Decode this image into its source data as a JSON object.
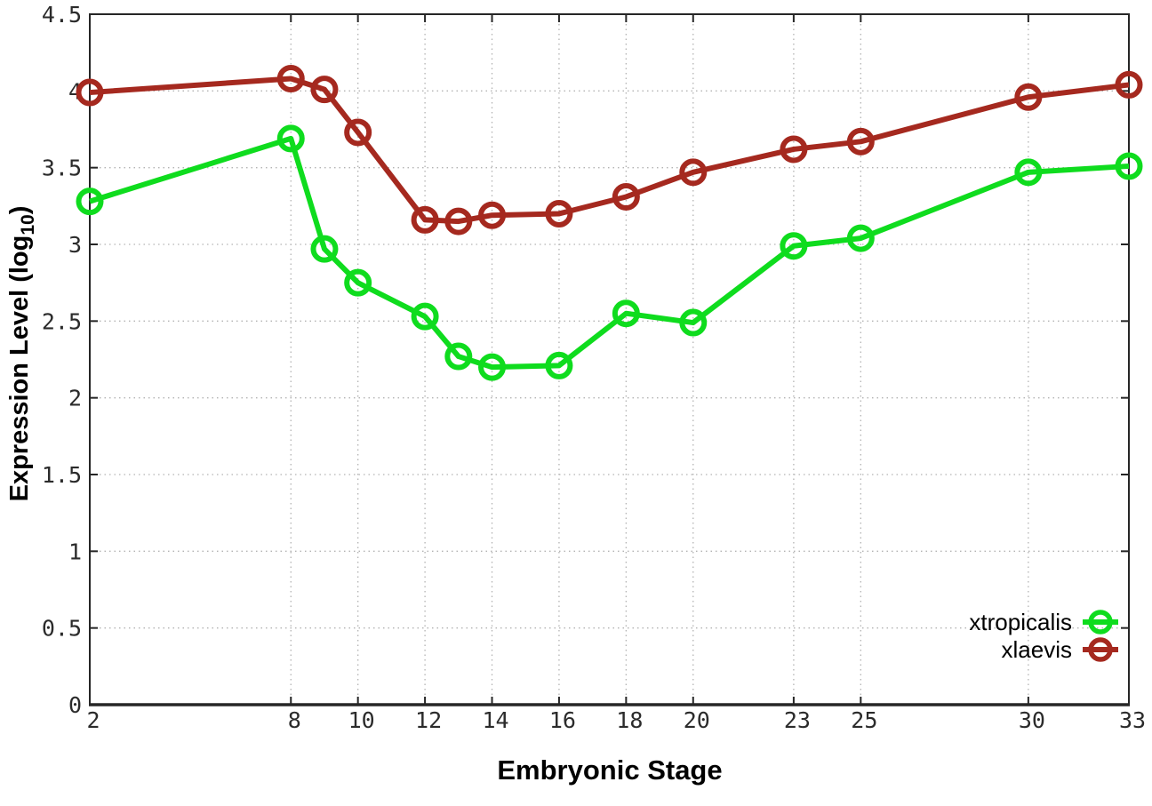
{
  "figure": {
    "xlabel": "Embryonic Stage",
    "ylabel_prefix": "Expression Level (log",
    "ylabel_sub": "10",
    "ylabel_suffix": ")"
  },
  "chart_data": {
    "type": "line",
    "title": "",
    "xlabel": "Embryonic Stage",
    "ylabel": "Expression Level (log10)",
    "x": [
      2,
      8,
      9,
      10,
      12,
      13,
      14,
      16,
      18,
      20,
      23,
      25,
      30,
      33
    ],
    "series": [
      {
        "name": "xtropicalis",
        "color": "#0fdc1e",
        "values": [
          3.28,
          3.69,
          2.97,
          2.75,
          2.53,
          2.27,
          2.2,
          2.21,
          2.55,
          2.49,
          2.99,
          3.04,
          3.47,
          3.51
        ]
      },
      {
        "name": "xlaevis",
        "color": "#a5291f",
        "values": [
          3.99,
          4.08,
          4.01,
          3.73,
          3.16,
          3.15,
          3.19,
          3.2,
          3.31,
          3.47,
          3.62,
          3.67,
          3.96,
          4.04
        ]
      }
    ],
    "xlim": [
      2,
      33
    ],
    "ylim": [
      0,
      4.5
    ],
    "x_tick_values": [
      2,
      8,
      10,
      12,
      14,
      16,
      18,
      20,
      23,
      25,
      30,
      33
    ],
    "x_tick_labels": [
      "2",
      "8",
      "10",
      "12",
      "14",
      "16",
      "18",
      "20",
      "23",
      "25",
      "30",
      "33"
    ],
    "y_tick_values": [
      0,
      0.5,
      1,
      1.5,
      2,
      2.5,
      3,
      3.5,
      4,
      4.5
    ],
    "y_tick_labels": [
      "0",
      "0.5",
      "1",
      "1.5",
      "2",
      "2.5",
      "3",
      "3.5",
      "4",
      "4.5"
    ],
    "grid": true,
    "marker": "open-circle",
    "legend_position": "bottom-right-inside"
  },
  "style": {
    "background": "#ffffff",
    "grid_color": "#b3b3b3",
    "axis_color": "#262626",
    "tick_label_color": "#2b2b2b",
    "legend_text_color": "#000000"
  }
}
